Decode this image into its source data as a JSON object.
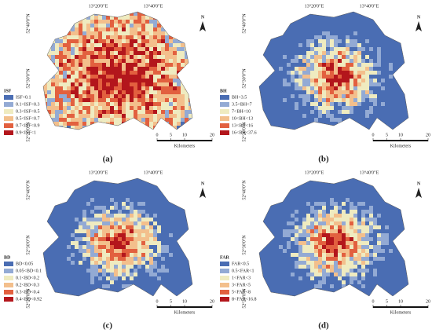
{
  "panels": [
    {
      "label": "(a)",
      "north": "N",
      "lon_labels": [
        "13°20'0\"E",
        "13°40'0\"E"
      ],
      "lat_labels": [
        "52°40'0\"N",
        "52°30'0\"N",
        "52°20'0\"N"
      ],
      "scale": {
        "ticks": [
          0,
          5,
          10,
          20
        ],
        "unit": "Kilometers"
      },
      "legend": {
        "title": "ISF",
        "items": [
          {
            "text": "ISF<0.1",
            "color": "#4a6db3"
          },
          {
            "text": "0.1<ISF<0.3",
            "color": "#93aad4"
          },
          {
            "text": "0.3<ISF<0.5",
            "color": "#efebc0"
          },
          {
            "text": "0.5<ISF<0.7",
            "color": "#f3bf8c"
          },
          {
            "text": "0.7<ISF<0.9",
            "color": "#e2603f"
          },
          {
            "text": "0.9<ISF<1",
            "color": "#b3161c"
          }
        ]
      }
    },
    {
      "label": "(b)",
      "north": "N",
      "lon_labels": [
        "13°20'0\"E",
        "13°40'0\"E"
      ],
      "lat_labels": [
        "52°40'0\"N",
        "52°30'0\"N",
        "52°20'0\"N"
      ],
      "scale": {
        "ticks": [
          0,
          5,
          10,
          20
        ],
        "unit": "Kilometers"
      },
      "legend": {
        "title": "BH",
        "items": [
          {
            "text": "BH<3.5",
            "color": "#4a6db3"
          },
          {
            "text": "3.5<BH<7",
            "color": "#93aad4"
          },
          {
            "text": "7<BH<10",
            "color": "#efebc0"
          },
          {
            "text": "10<BH<13",
            "color": "#f3bf8c"
          },
          {
            "text": "13<BH<16",
            "color": "#e2603f"
          },
          {
            "text": "16<BH<37.6",
            "color": "#b3161c"
          }
        ]
      }
    },
    {
      "label": "(c)",
      "north": "N",
      "lon_labels": [
        "13°20'0\"E",
        "13°40'0\"E"
      ],
      "lat_labels": [
        "52°40'0\"N",
        "52°30'0\"N",
        "52°20'0\"N"
      ],
      "scale": {
        "ticks": [
          0,
          5,
          10,
          20
        ],
        "unit": "Kilometers"
      },
      "legend": {
        "title": "BD",
        "items": [
          {
            "text": "BD<0.05",
            "color": "#4a6db3"
          },
          {
            "text": "0.05<BD<0.1",
            "color": "#93aad4"
          },
          {
            "text": "0.1<BD<0.2",
            "color": "#efebc0"
          },
          {
            "text": "0.2<BD<0.3",
            "color": "#f3bf8c"
          },
          {
            "text": "0.3<BD<0.4",
            "color": "#e2603f"
          },
          {
            "text": "0.4<BD<0.92",
            "color": "#b3161c"
          }
        ]
      }
    },
    {
      "label": "(d)",
      "north": "N",
      "lon_labels": [
        "13°20'0\"E",
        "13°40'0\"E"
      ],
      "lat_labels": [
        "52°40'0\"N",
        "52°30'0\"N",
        "52°20'0\"N"
      ],
      "scale": {
        "ticks": [
          0,
          5,
          10,
          20
        ],
        "unit": "Kilometers"
      },
      "legend": {
        "title": "FAR",
        "items": [
          {
            "text": "FAR<0.5",
            "color": "#4a6db3"
          },
          {
            "text": "0.5<FAR<1",
            "color": "#93aad4"
          },
          {
            "text": "1<FAR<3",
            "color": "#efebc0"
          },
          {
            "text": "3<FAR<5",
            "color": "#f3bf8c"
          },
          {
            "text": "5<FAR<8",
            "color": "#e2603f"
          },
          {
            "text": "8<FAR<16.8",
            "color": "#b3161c"
          }
        ]
      }
    }
  ]
}
